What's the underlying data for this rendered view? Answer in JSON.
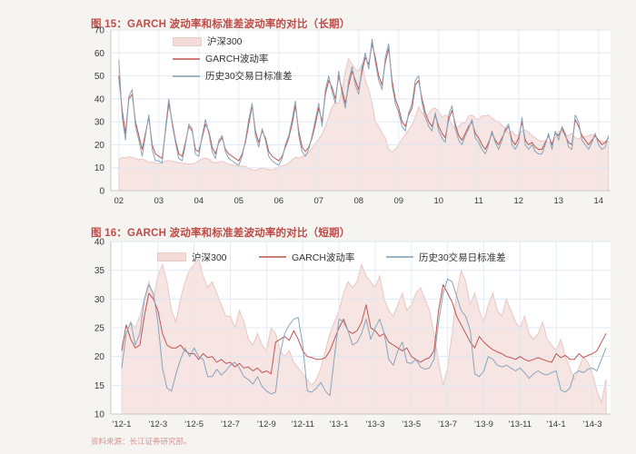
{
  "page": {
    "background": "#f6f4f1",
    "source_note": "资料来源：长江证券研究部。"
  },
  "colors": {
    "title_red": "#bf4a46",
    "plot_bg": "#ffffff",
    "grid": "#dde5ee",
    "axis": "#c9c9c9",
    "tick_text": "#3a3a3a",
    "source_text": "#d79490"
  },
  "chart_data": [
    {
      "type": "line",
      "title": "图 15：GARCH 波动率和标准差波动率的对比（长期）",
      "legend_position": "inside top-left, vertical",
      "grid": true,
      "ylim": [
        0,
        70
      ],
      "yticks": [
        0,
        10,
        20,
        30,
        40,
        50,
        60,
        70
      ],
      "xlim": [
        2001.8,
        2014.3
      ],
      "xticks": [
        {
          "v": 2002,
          "label": "02"
        },
        {
          "v": 2003,
          "label": "03"
        },
        {
          "v": 2004,
          "label": "04"
        },
        {
          "v": 2005,
          "label": "05"
        },
        {
          "v": 2006,
          "label": "06"
        },
        {
          "v": 2007,
          "label": "07"
        },
        {
          "v": 2008,
          "label": "08"
        },
        {
          "v": 2009,
          "label": "09"
        },
        {
          "v": 2010,
          "label": "10"
        },
        {
          "v": 2011,
          "label": "11"
        },
        {
          "v": 2012,
          "label": "12"
        },
        {
          "v": 2013,
          "label": "13"
        },
        {
          "v": 2014,
          "label": "14"
        }
      ],
      "series": [
        {
          "name": "沪深300",
          "type": "area",
          "fill": "#f7e5e3",
          "stroke": "#e9c6c2",
          "x_start": 2002,
          "x_step": 0.083333,
          "values": [
            13.5,
            14.5,
            14.2,
            14.8,
            14.5,
            14,
            13.5,
            13.8,
            13.2,
            12.2,
            12.5,
            12,
            11.8,
            12.2,
            12.8,
            13.2,
            12.8,
            12.5,
            12.2,
            12,
            11.8,
            11.5,
            11.8,
            12,
            13,
            13.8,
            14.2,
            13.8,
            12.5,
            12.2,
            12.5,
            12.8,
            12.2,
            11.5,
            11.2,
            11,
            10.5,
            10.8,
            10.5,
            9.8,
            9.2,
            8.8,
            9.5,
            9.8,
            9.5,
            9.2,
            9,
            9.5,
            10.2,
            10.8,
            11.2,
            12,
            13.5,
            14.5,
            14.2,
            14.8,
            15.5,
            16.5,
            18.5,
            20.5,
            22.5,
            24.5,
            28,
            32,
            36.5,
            38.5,
            38,
            44,
            52,
            57.5,
            55,
            53,
            52,
            55,
            48,
            44,
            38,
            30,
            28,
            25,
            23,
            18,
            17,
            18,
            20,
            22.5,
            24.5,
            26.5,
            28.5,
            32,
            36.5,
            34,
            32,
            33.5,
            35.5,
            36,
            34.5,
            32,
            33,
            32,
            28.5,
            27,
            28,
            29.5,
            29.5,
            32.5,
            33,
            31.5,
            31,
            32.5,
            32.5,
            33,
            31.5,
            30.5,
            30,
            28.5,
            27,
            25,
            26,
            24,
            24.5,
            26,
            26.5,
            25.5,
            24,
            23,
            22,
            21.5,
            21.8,
            21,
            21,
            23,
            26,
            26,
            24.5,
            24,
            25,
            23,
            22.5,
            23.5,
            23.5,
            24,
            24.5,
            23.5,
            22,
            21.5,
            21,
            21.5
          ]
        },
        {
          "name": "GARCH波动率",
          "type": "line",
          "stroke": "#bf5450",
          "x_start": 2002,
          "x_step": 0.083333,
          "values": [
            50,
            35,
            25,
            40,
            42,
            30,
            24,
            18,
            25,
            32,
            20,
            16,
            15,
            14,
            26,
            38,
            30,
            22,
            16,
            15,
            21,
            28,
            26,
            18,
            17,
            23,
            29,
            26,
            19,
            16,
            21,
            23,
            18,
            16,
            15,
            14,
            13,
            16,
            21,
            29,
            37,
            26,
            21,
            26,
            23,
            17,
            15,
            14,
            13,
            15,
            19,
            23,
            29,
            37,
            26,
            19,
            17,
            19,
            23,
            29,
            36,
            30,
            42,
            48,
            45,
            40,
            50,
            44,
            38,
            46,
            52,
            48,
            44,
            52,
            58,
            55,
            64,
            58,
            50,
            46,
            56,
            62,
            48,
            40,
            36,
            30,
            28,
            33,
            36,
            46,
            48,
            40,
            34,
            30,
            28,
            33,
            28,
            25,
            23,
            31,
            35,
            29,
            24,
            22,
            25,
            28,
            30,
            25,
            23,
            20,
            18,
            21,
            25,
            22,
            20,
            23,
            26,
            28,
            22,
            20,
            23,
            30,
            22,
            20,
            21,
            19,
            18,
            18,
            21,
            24,
            20,
            25,
            24,
            27,
            24,
            21,
            20,
            31,
            28,
            24,
            22,
            20,
            22,
            24,
            22,
            20,
            21,
            23
          ]
        },
        {
          "name": "历史30交易日标准差",
          "type": "line",
          "stroke": "#88a4ba",
          "x_start": 2002,
          "x_step": 0.083333,
          "values": [
            57,
            32,
            22,
            41,
            44,
            28,
            22,
            15,
            24,
            33,
            18,
            13,
            13,
            12,
            27,
            40,
            29,
            21,
            14,
            13,
            20,
            29,
            27,
            16,
            15,
            24,
            31,
            25,
            17,
            14,
            22,
            24,
            17,
            14,
            13,
            12,
            11,
            15,
            22,
            31,
            38,
            24,
            19,
            27,
            22,
            15,
            13,
            12,
            11,
            14,
            20,
            24,
            31,
            39,
            24,
            17,
            15,
            18,
            24,
            31,
            38,
            28,
            44,
            50,
            43,
            38,
            52,
            42,
            36,
            48,
            54,
            46,
            42,
            54,
            60,
            53,
            66,
            56,
            48,
            44,
            58,
            64,
            46,
            38,
            34,
            28,
            26,
            34,
            38,
            48,
            50,
            38,
            32,
            28,
            26,
            34,
            26,
            23,
            21,
            33,
            37,
            27,
            22,
            20,
            24,
            27,
            31,
            23,
            21,
            18,
            16,
            20,
            26,
            21,
            18,
            22,
            27,
            29,
            20,
            18,
            21,
            32,
            20,
            18,
            20,
            17,
            16,
            16,
            20,
            25,
            18,
            26,
            22,
            28,
            25,
            19,
            18,
            33,
            30,
            22,
            20,
            18,
            21,
            25,
            20,
            18,
            19,
            24
          ]
        }
      ]
    },
    {
      "type": "line",
      "title": "图 16：GARCH 波动率和标准差波动率的对比（短期）",
      "legend_position": "inside top, horizontal",
      "grid": true,
      "ylim": [
        10,
        40
      ],
      "yticks": [
        10,
        15,
        20,
        25,
        30,
        35,
        40
      ],
      "xlim": [
        2011.95,
        2014.25
      ],
      "xticks": [
        {
          "v": 2012.0,
          "label": "'12-1"
        },
        {
          "v": 2012.1667,
          "label": "'12-3"
        },
        {
          "v": 2012.3333,
          "label": "'12-5"
        },
        {
          "v": 2012.5,
          "label": "'12-7"
        },
        {
          "v": 2012.6667,
          "label": "'12-9"
        },
        {
          "v": 2012.8333,
          "label": "'12-11"
        },
        {
          "v": 2013.0,
          "label": "'13-1"
        },
        {
          "v": 2013.1667,
          "label": "'13-3"
        },
        {
          "v": 2013.3333,
          "label": "'13-5"
        },
        {
          "v": 2013.5,
          "label": "'13-7"
        },
        {
          "v": 2013.6667,
          "label": "'13-9"
        },
        {
          "v": 2013.8333,
          "label": "'13-11"
        },
        {
          "v": 2014.0,
          "label": "'14-1"
        },
        {
          "v": 2014.1667,
          "label": "'14-3"
        }
      ],
      "series": [
        {
          "name": "沪深300",
          "type": "area",
          "fill": "#f7e5e3",
          "stroke": "#e9c6c2",
          "x_start": 2012,
          "x_step": 0.020833,
          "values": [
            22,
            24,
            26,
            25,
            27,
            30,
            33,
            30,
            34,
            36,
            33,
            28,
            26,
            30,
            33,
            35,
            36,
            37,
            34,
            32,
            33,
            31,
            29,
            27,
            27,
            25,
            28,
            26,
            23,
            22,
            24,
            22,
            21,
            25,
            24,
            21,
            20,
            21,
            19,
            18,
            17,
            16,
            15,
            16,
            18,
            21,
            24,
            26,
            28,
            31,
            33,
            32,
            33,
            36,
            34,
            33,
            32,
            34,
            30,
            28,
            27,
            29,
            31,
            28,
            29,
            31,
            32,
            30,
            28,
            24,
            19,
            15,
            18,
            24,
            31,
            35,
            33,
            29,
            31,
            28,
            26,
            29,
            31,
            28,
            27,
            30,
            28,
            26,
            25,
            27,
            24,
            23,
            24,
            26,
            23,
            22,
            21,
            23,
            20,
            18,
            16,
            18,
            20,
            19,
            17,
            14,
            12,
            16
          ]
        },
        {
          "name": "GARCH波动率",
          "type": "line",
          "stroke": "#bf5450",
          "x_start": 2012,
          "x_step": 0.020833,
          "values": [
            21,
            25.5,
            23,
            21.5,
            22,
            27,
            31,
            30,
            28,
            24,
            22,
            21.5,
            21.5,
            22,
            21,
            20.5,
            20.5,
            19.5,
            20.5,
            19.8,
            20,
            19,
            19.5,
            18.8,
            19,
            18.2,
            18.8,
            18,
            18.2,
            17.5,
            18,
            17.2,
            17.5,
            17,
            22.5,
            23,
            23.5,
            22.8,
            24.5,
            23,
            21,
            20,
            19.8,
            19.5,
            19.5,
            19.8,
            21,
            23,
            25,
            26.5,
            24.5,
            24,
            24.5,
            26,
            29,
            25,
            24.5,
            23.5,
            24,
            22.5,
            22,
            21.5,
            21,
            21.5,
            20,
            19.5,
            19,
            19.5,
            19.8,
            21,
            28,
            32.5,
            31,
            29.5,
            27,
            25.5,
            24,
            22.5,
            21.5,
            23.5,
            22.5,
            21.8,
            21.2,
            20.8,
            20.5,
            20,
            19.8,
            19.5,
            20,
            19.5,
            19.2,
            19.5,
            19.8,
            19.5,
            19.2,
            19,
            20.5,
            19.8,
            20.2,
            19.5,
            19.5,
            20.5,
            19.8,
            20.2,
            20.5,
            21,
            22.5,
            24
          ]
        },
        {
          "name": "历史30交易日标准差",
          "type": "line",
          "stroke": "#88a4ba",
          "x_start": 2012,
          "x_step": 0.020833,
          "values": [
            18,
            24,
            26,
            22,
            24,
            30,
            32.5,
            31,
            26,
            18,
            14.5,
            14,
            17,
            19.5,
            21.5,
            20,
            21.5,
            20,
            19.5,
            16.5,
            16.5,
            17.8,
            16.8,
            17.5,
            18.5,
            19,
            18,
            16.5,
            16,
            15.2,
            16.5,
            14.8,
            14,
            13.5,
            13.8,
            20.5,
            24,
            25.5,
            26.5,
            26.8,
            22,
            14,
            13.8,
            14.5,
            15.5,
            14,
            13.2,
            20,
            26.5,
            26,
            24.5,
            22,
            22.5,
            24,
            26.5,
            23,
            25,
            26.5,
            24,
            19.5,
            18.5,
            21,
            22.5,
            19,
            18.8,
            19.5,
            18.2,
            17.8,
            18,
            19.5,
            26,
            31,
            33.5,
            33,
            30.5,
            28,
            27,
            24.5,
            17,
            16.5,
            17.5,
            20,
            19.5,
            18.5,
            18.2,
            18.5,
            18,
            17.5,
            18,
            17.2,
            16.2,
            17,
            17.5,
            17,
            16.8,
            17.2,
            17.5,
            14.2,
            13.8,
            14.5,
            17,
            17.5,
            17.2,
            17.8,
            18,
            17.5,
            19.5,
            21.5
          ]
        }
      ]
    }
  ]
}
